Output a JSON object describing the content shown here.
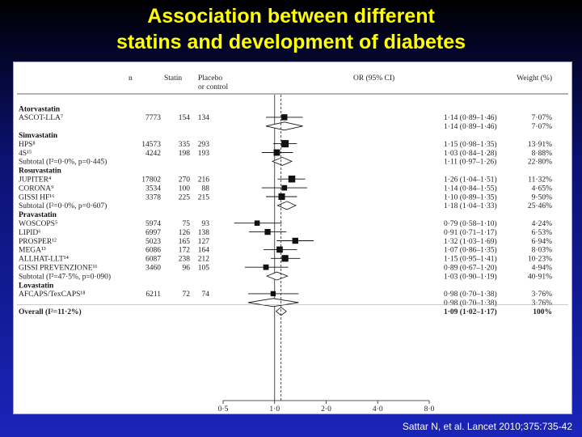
{
  "slide": {
    "title_line1": "Association between different",
    "title_line2": "statins and development of diabetes",
    "citation": "Sattar N, et al. Lancet 2010;375:735-42"
  },
  "chart_data": {
    "type": "forest",
    "scale": "log",
    "xlim": [
      0.5,
      8.0
    ],
    "xticks": [
      0.5,
      1.0,
      2.0,
      4.0,
      8.0
    ],
    "xtick_labels": [
      "0·5",
      "1·0",
      "2·0",
      "4·0",
      "8·0"
    ],
    "headers": {
      "n": "n",
      "statin": "Statin",
      "placebo_1": "Placebo",
      "placebo_2": "or control",
      "or": "OR (95% CI)",
      "weight": "Weight (%)"
    },
    "rows": [
      {
        "kind": "group",
        "label": "Atorvastatin"
      },
      {
        "kind": "study",
        "label": "ASCOT-LLA⁷",
        "n": "7773",
        "statin": "154",
        "placebo": "134",
        "or": 1.14,
        "lo": 0.89,
        "hi": 1.46,
        "or_text": "1·14 (0·89–1·46)",
        "weight": "7·07%",
        "w": 7.07
      },
      {
        "kind": "subtotal",
        "label": "",
        "or": 1.14,
        "lo": 0.89,
        "hi": 1.46,
        "or_text": "1·14 (0·89–1·46)",
        "weight": "7·07%"
      },
      {
        "kind": "group",
        "label": "Simvastatin"
      },
      {
        "kind": "study",
        "label": "HPS⁸",
        "n": "14573",
        "statin": "335",
        "placebo": "293",
        "or": 1.15,
        "lo": 0.98,
        "hi": 1.35,
        "or_text": "1·15 (0·98–1·35)",
        "weight": "13·91%",
        "w": 13.91
      },
      {
        "kind": "study",
        "label": "4S¹⁵",
        "n": "4242",
        "statin": "198",
        "placebo": "193",
        "or": 1.03,
        "lo": 0.84,
        "hi": 1.28,
        "or_text": "1·03 (0·84–1·28)",
        "weight": "8·88%",
        "w": 8.88
      },
      {
        "kind": "subtotal",
        "label": "Subtotal (I²=0·0%, p=0·445)",
        "or": 1.11,
        "lo": 0.97,
        "hi": 1.26,
        "or_text": "1·11 (0·97–1·26)",
        "weight": "22·80%"
      },
      {
        "kind": "group",
        "label": "Rosuvastatin"
      },
      {
        "kind": "study",
        "label": "JUPITER⁴",
        "n": "17802",
        "statin": "270",
        "placebo": "216",
        "or": 1.26,
        "lo": 1.04,
        "hi": 1.51,
        "or_text": "1·26 (1·04–1·51)",
        "weight": "11·32%",
        "w": 11.32
      },
      {
        "kind": "study",
        "label": "CORONA⁹",
        "n": "3534",
        "statin": "100",
        "placebo": "88",
        "or": 1.14,
        "lo": 0.84,
        "hi": 1.55,
        "or_text": "1·14 (0·84–1·55)",
        "weight": "4·65%",
        "w": 4.65
      },
      {
        "kind": "study",
        "label": "GISSI HF¹⁶",
        "n": "3378",
        "statin": "225",
        "placebo": "215",
        "or": 1.1,
        "lo": 0.89,
        "hi": 1.35,
        "or_text": "1·10 (0·89–1·35)",
        "weight": "9·50%",
        "w": 9.5
      },
      {
        "kind": "subtotal",
        "label": "Subtotal (I²=0·0%, p=0·607)",
        "or": 1.18,
        "lo": 1.04,
        "hi": 1.33,
        "or_text": "1·18 (1·04–1·33)",
        "weight": "25·46%"
      },
      {
        "kind": "group",
        "label": "Pravastatin"
      },
      {
        "kind": "study",
        "label": "WOSCOPS⁵",
        "n": "5974",
        "statin": "75",
        "placebo": "93",
        "or": 0.79,
        "lo": 0.58,
        "hi": 1.1,
        "or_text": "0·79 (0·58–1·10)",
        "weight": "4·24%",
        "w": 4.24
      },
      {
        "kind": "study",
        "label": "LIPID⁶",
        "n": "6997",
        "statin": "126",
        "placebo": "138",
        "or": 0.91,
        "lo": 0.71,
        "hi": 1.17,
        "or_text": "0·91 (0·71–1·17)",
        "weight": "6·53%",
        "w": 6.53
      },
      {
        "kind": "study",
        "label": "PROSPER¹²",
        "n": "5023",
        "statin": "165",
        "placebo": "127",
        "or": 1.32,
        "lo": 1.03,
        "hi": 1.69,
        "or_text": "1·32 (1·03–1·69)",
        "weight": "6·94%",
        "w": 6.94
      },
      {
        "kind": "study",
        "label": "MEGA¹³",
        "n": "6086",
        "statin": "172",
        "placebo": "164",
        "or": 1.07,
        "lo": 0.86,
        "hi": 1.35,
        "or_text": "1·07 (0·86–1·35)",
        "weight": "8·03%",
        "w": 8.03
      },
      {
        "kind": "study",
        "label": "ALLHAT-LLT¹⁴",
        "n": "6087",
        "statin": "238",
        "placebo": "212",
        "or": 1.15,
        "lo": 0.95,
        "hi": 1.41,
        "or_text": "1·15 (0·95–1·41)",
        "weight": "10·23%",
        "w": 10.23
      },
      {
        "kind": "study",
        "label": "GISSI PREVENZIONE¹⁶",
        "n": "3460",
        "statin": "96",
        "placebo": "105",
        "or": 0.89,
        "lo": 0.67,
        "hi": 1.2,
        "or_text": "0·89 (0·67–1·20)",
        "weight": "4·94%",
        "w": 4.94
      },
      {
        "kind": "subtotal",
        "label": "Subtotal (I²=47·5%, p=0·090)",
        "or": 1.03,
        "lo": 0.9,
        "hi": 1.19,
        "or_text": "1·03 (0·90–1·19)",
        "weight": "40·91%"
      },
      {
        "kind": "group",
        "label": "Lovastatin"
      },
      {
        "kind": "study",
        "label": "AFCAPS/TexCAPS¹⁸",
        "n": "6211",
        "statin": "72",
        "placebo": "74",
        "or": 0.98,
        "lo": 0.7,
        "hi": 1.38,
        "or_text": "0·98 (0·70–1·38)",
        "weight": "3·76%",
        "w": 3.76
      },
      {
        "kind": "subtotal",
        "label": "",
        "or": 0.98,
        "lo": 0.7,
        "hi": 1.38,
        "or_text": "0·98 (0·70–1·38)",
        "weight": "3·76%"
      },
      {
        "kind": "overall",
        "label": "Overall (I²=11·2%)",
        "or": 1.09,
        "lo": 1.02,
        "hi": 1.17,
        "or_text": "1·09 (1·02–1·17)",
        "weight": "100%"
      }
    ]
  }
}
